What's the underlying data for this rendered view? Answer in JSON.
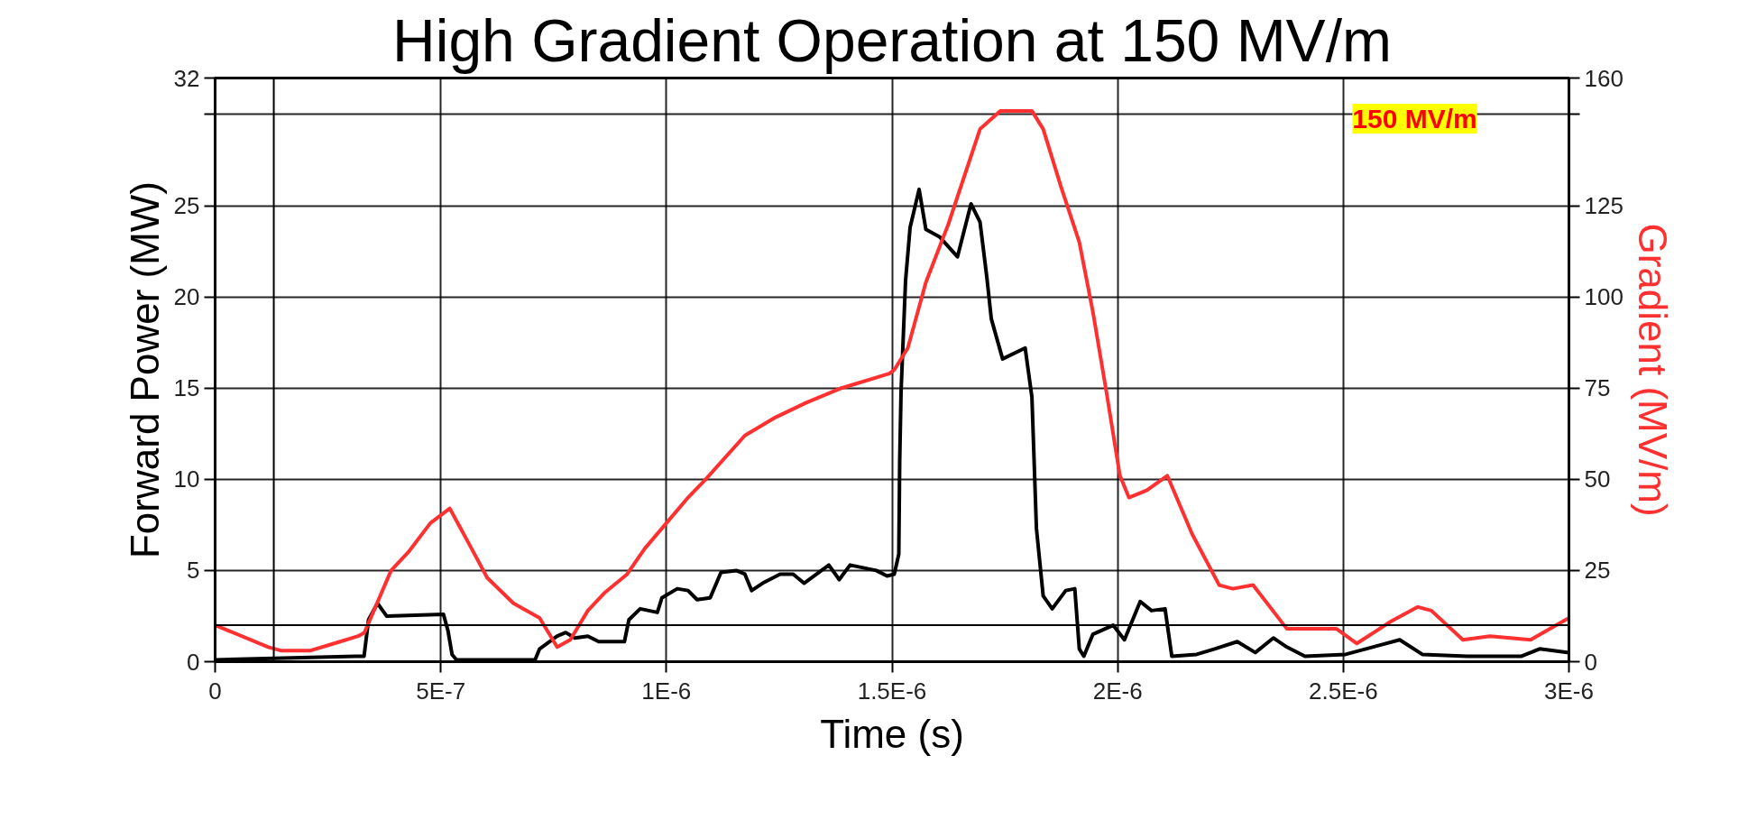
{
  "chart_data": {
    "type": "line",
    "title": "High Gradient Operation at 150 MV/m",
    "xlabel": "Time (s)",
    "ylabel": "Forward Power (MW)",
    "y2label": "Gradient (MV/m)",
    "xlim": [
      0,
      3e-06
    ],
    "xticks": [
      0,
      {
        "value": 5e-07,
        "label": "5E-7"
      },
      {
        "value": 1e-06,
        "label": "1E-6"
      },
      {
        "value": 1.5e-06,
        "label": "1.5E-6"
      },
      {
        "value": 2e-06,
        "label": "2E-6"
      },
      {
        "value": 2.5e-06,
        "label": "2.5E-6"
      },
      {
        "value": 3e-06,
        "label": "3E-6"
      }
    ],
    "ylim": [
      0,
      32
    ],
    "yticks": [
      0,
      5,
      10,
      15,
      20,
      25,
      {
        "value": 30,
        "label": null
      },
      32
    ],
    "y2lim": [
      0,
      160
    ],
    "y2ticks": [
      0,
      25,
      50,
      75,
      100,
      125,
      {
        "value": 150,
        "label": null
      },
      160
    ],
    "grid": true,
    "line_style": "solid",
    "marker": "none",
    "ref_lines": [
      {
        "axis": "y",
        "value": 2,
        "color": "#000000"
      },
      {
        "axis": "x",
        "value": 1.3e-07,
        "color": "#000000"
      }
    ],
    "annotations": [
      "150 MV/m"
    ],
    "series": [
      {
        "color": "#000000",
        "x": [
          0,
          3.12e-07,
          3.3e-07,
          3.4e-07,
          3.6e-07,
          3.8e-07,
          5.06e-07,
          5.16e-07,
          5.25e-07,
          5.35e-07,
          7.09e-07,
          7.19e-07,
          7.58e-07,
          7.77e-07,
          7.97e-07,
          8.26e-07,
          8.5e-07,
          9.07e-07,
          9.17e-07,
          9.42e-07,
          9.8e-07,
          9.9e-07,
          1.024e-06,
          1.048e-06,
          1.068e-06,
          1.097e-06,
          1.121e-06,
          1.155e-06,
          1.174e-06,
          1.189e-06,
          1.213e-06,
          1.252e-06,
          1.281e-06,
          1.305e-06,
          1.36e-06,
          1.383e-06,
          1.407e-06,
          1.465e-06,
          1.489e-06,
          1.505e-06,
          1.515e-06,
          1.517e-06,
          1.52e-06,
          1.53e-06,
          1.54e-06,
          1.56e-06,
          1.575e-06,
          1.605e-06,
          1.645e-06,
          1.675e-06,
          1.695e-06,
          1.71e-06,
          1.72e-06,
          1.745e-06,
          1.795e-06,
          1.81e-06,
          1.82e-06,
          1.835e-06,
          1.855e-06,
          1.885e-06,
          1.905e-06,
          1.915e-06,
          1.925e-06,
          1.945e-06,
          1.99e-06,
          2.015e-06,
          2.05e-06,
          2.075e-06,
          2.105e-06,
          2.12e-06,
          2.175e-06,
          2.215e-06,
          2.265e-06,
          2.305e-06,
          2.345e-06,
          2.375e-06,
          2.415e-06,
          2.505e-06,
          2.625e-06,
          2.675e-06,
          2.775e-06,
          2.895e-06,
          2.935e-06,
          3e-06
        ],
        "values": [
          0.1,
          0.3,
          0.3,
          2.3,
          3.2,
          2.5,
          2.6,
          1.7,
          0.4,
          0.1,
          0.1,
          0.7,
          1.4,
          1.6,
          1.3,
          1.4,
          1.1,
          1.1,
          2.3,
          2.9,
          2.7,
          3.5,
          4.0,
          3.9,
          3.4,
          3.5,
          4.9,
          5.0,
          4.8,
          3.9,
          4.3,
          4.8,
          4.8,
          4.3,
          5.3,
          4.5,
          5.3,
          5.0,
          4.7,
          4.8,
          5.9,
          11.0,
          14.8,
          20.9,
          23.8,
          25.9,
          23.7,
          23.3,
          22.2,
          25.1,
          24.1,
          21.1,
          18.8,
          16.6,
          17.2,
          14.5,
          7.3,
          3.6,
          2.9,
          3.9,
          4.0,
          0.7,
          0.3,
          1.5,
          2.0,
          1.2,
          3.3,
          2.8,
          2.9,
          0.3,
          0.4,
          0.7,
          1.1,
          0.5,
          1.3,
          0.8,
          0.3,
          0.4,
          1.2,
          0.4,
          0.3,
          0.3,
          0.7,
          0.5
        ]
      },
      {
        "color": "#ff3030",
        "axis": "y2",
        "x": [
          0,
          1.18e-07,
          1.47e-07,
          2.1e-07,
          2.64e-07,
          3.17e-07,
          3.31e-07,
          3.9e-07,
          4.28e-07,
          4.77e-07,
          5.2e-07,
          5.64e-07,
          6.03e-07,
          6.61e-07,
          7.19e-07,
          7.58e-07,
          7.87e-07,
          8.26e-07,
          8.64e-07,
          9.13e-07,
          9.52e-07,
          1e-06,
          1.048e-06,
          1.087e-06,
          1.174e-06,
          1.242e-06,
          1.31e-06,
          1.388e-06,
          1.494e-06,
          1.505e-06,
          1.535e-06,
          1.575e-06,
          1.625e-06,
          1.695e-06,
          1.74e-06,
          1.81e-06,
          1.835e-06,
          1.875e-06,
          1.915e-06,
          1.945e-06,
          1.975e-06,
          2.005e-06,
          2.025e-06,
          2.065e-06,
          2.11e-06,
          2.165e-06,
          2.225e-06,
          2.255e-06,
          2.3e-06,
          2.375e-06,
          2.485e-06,
          2.53e-06,
          2.605e-06,
          2.665e-06,
          2.695e-06,
          2.765e-06,
          2.825e-06,
          2.915e-06,
          3e-06
        ],
        "values": [
          10,
          4,
          3,
          3,
          5,
          7,
          8,
          25,
          30,
          38,
          42,
          32,
          23,
          16,
          12,
          4,
          6,
          14,
          19,
          24,
          31,
          38,
          45,
          50,
          62,
          67,
          71,
          75,
          79,
          80,
          86,
          104,
          120,
          146,
          151,
          151,
          146,
          130,
          115,
          96,
          74,
          51,
          45,
          47,
          51,
          35,
          21,
          20,
          21,
          9,
          9,
          5,
          11,
          15,
          14,
          6,
          7,
          6,
          12
        ]
      }
    ]
  }
}
